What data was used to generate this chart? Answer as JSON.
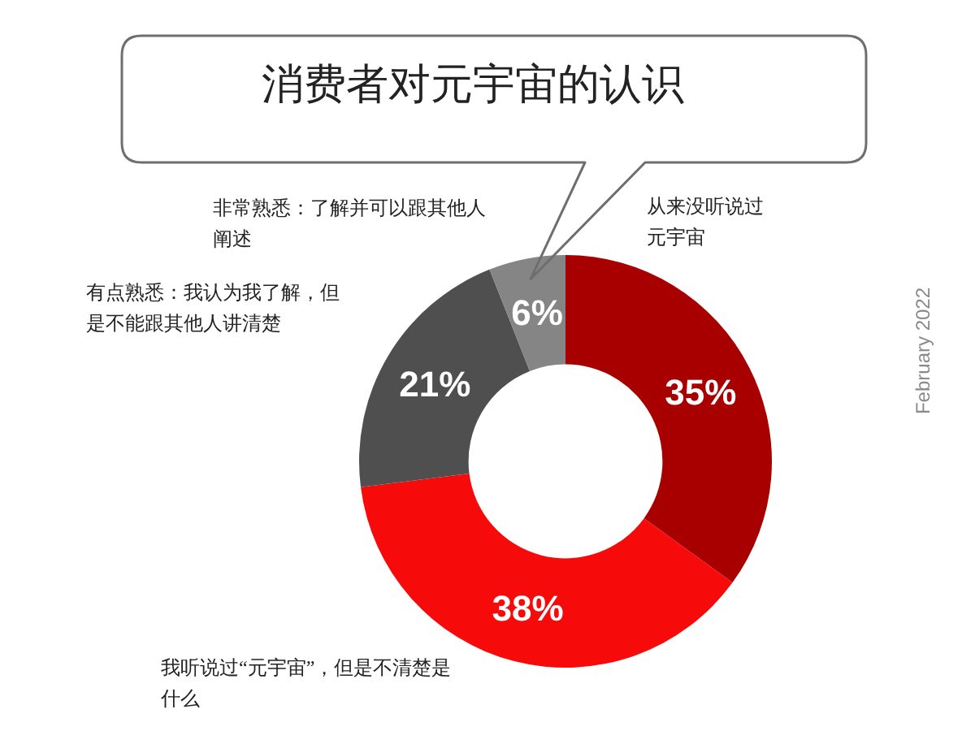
{
  "chart_data": {
    "type": "donut",
    "title": "消费者对元宇宙的认识",
    "categories": [
      "从来没听说过元宇宙",
      "我听说过“元宇宙”，但是不清楚是什么",
      "有点熟悉：我认为我了解，但是不能跟其他人讲清楚",
      "非常熟悉：了解并可以跟其他人阐述"
    ],
    "values": [
      35,
      38,
      21,
      6
    ],
    "colors": [
      "#a80000",
      "#f70a0a",
      "#4f4f4f",
      "#858585"
    ],
    "value_labels": [
      "35%",
      "38%",
      "21%",
      "6%"
    ],
    "annotations": [
      "February 2022"
    ]
  }
}
